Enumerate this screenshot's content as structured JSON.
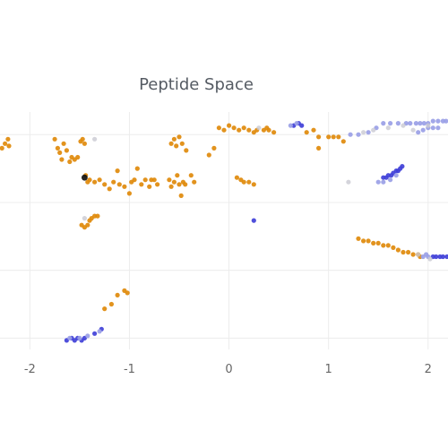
{
  "chart_data": {
    "type": "scatter",
    "title": "Peptide Space",
    "xlabel": "",
    "ylabel": "",
    "xlim": [
      -2.3,
      2.2
    ],
    "ylim": [
      -0.05,
      1.0
    ],
    "x_ticks": [
      -2,
      -1,
      0,
      1,
      2
    ],
    "y_gridlines": [
      0.0,
      0.3,
      0.6,
      0.9
    ],
    "grid": true,
    "legend": "none",
    "colors": {
      "orange": "#e08a0b",
      "blue": "#4040d8",
      "light_blue": "#9aa0e6",
      "gray": "#c9c9d2",
      "black": "#111111"
    },
    "series": [
      {
        "color": "orange",
        "points": [
          [
            -2.28,
            0.84
          ],
          [
            -2.25,
            0.86
          ],
          [
            -2.22,
            0.88
          ],
          [
            -2.21,
            0.85
          ],
          [
            -1.75,
            0.88
          ],
          [
            -1.72,
            0.84
          ],
          [
            -1.7,
            0.82
          ],
          [
            -1.68,
            0.79
          ],
          [
            -1.66,
            0.86
          ],
          [
            -1.63,
            0.83
          ],
          [
            -1.6,
            0.78
          ],
          [
            -1.58,
            0.8
          ],
          [
            -1.55,
            0.79
          ],
          [
            -1.52,
            0.8
          ],
          [
            -1.49,
            0.87
          ],
          [
            -1.47,
            0.88
          ],
          [
            -1.45,
            0.86
          ],
          [
            -1.44,
            0.72
          ],
          [
            -1.42,
            0.69
          ],
          [
            -1.4,
            0.7
          ],
          [
            -1.35,
            0.69
          ],
          [
            -1.3,
            0.7
          ],
          [
            -1.25,
            0.68
          ],
          [
            -1.2,
            0.66
          ],
          [
            -1.16,
            0.69
          ],
          [
            -1.12,
            0.74
          ],
          [
            -1.1,
            0.68
          ],
          [
            -1.05,
            0.67
          ],
          [
            -1.0,
            0.64
          ],
          [
            -0.98,
            0.69
          ],
          [
            -0.95,
            0.7
          ],
          [
            -0.92,
            0.75
          ],
          [
            -0.88,
            0.68
          ],
          [
            -0.84,
            0.7
          ],
          [
            -0.8,
            0.67
          ],
          [
            -0.78,
            0.7
          ],
          [
            -0.75,
            0.7
          ],
          [
            -0.72,
            0.68
          ],
          [
            -0.6,
            0.7
          ],
          [
            -0.58,
            0.67
          ],
          [
            -0.55,
            0.69
          ],
          [
            -0.52,
            0.72
          ],
          [
            -0.5,
            0.68
          ],
          [
            -0.48,
            0.63
          ],
          [
            -0.46,
            0.69
          ],
          [
            -0.44,
            0.68
          ],
          [
            -0.38,
            0.72
          ],
          [
            -0.35,
            0.69
          ],
          [
            -0.58,
            0.86
          ],
          [
            -0.55,
            0.88
          ],
          [
            -0.53,
            0.85
          ],
          [
            -0.5,
            0.89
          ],
          [
            -0.47,
            0.86
          ],
          [
            -0.43,
            0.83
          ],
          [
            -0.2,
            0.81
          ],
          [
            -0.15,
            0.84
          ],
          [
            -1.4,
            0.52
          ],
          [
            -1.42,
            0.5
          ],
          [
            -1.45,
            0.49
          ],
          [
            -1.48,
            0.5
          ],
          [
            -1.38,
            0.53
          ],
          [
            -1.35,
            0.54
          ],
          [
            -1.32,
            0.54
          ],
          [
            -1.25,
            0.13
          ],
          [
            -1.18,
            0.15
          ],
          [
            -1.12,
            0.19
          ],
          [
            -1.05,
            0.21
          ],
          [
            -1.02,
            0.2
          ],
          [
            -0.1,
            0.93
          ],
          [
            -0.05,
            0.92
          ],
          [
            0.0,
            0.94
          ],
          [
            0.05,
            0.93
          ],
          [
            0.1,
            0.92
          ],
          [
            0.15,
            0.93
          ],
          [
            0.2,
            0.92
          ],
          [
            0.25,
            0.91
          ],
          [
            0.28,
            0.92
          ],
          [
            0.35,
            0.92
          ],
          [
            0.38,
            0.93
          ],
          [
            0.4,
            0.92
          ],
          [
            0.45,
            0.91
          ],
          [
            0.78,
            0.91
          ],
          [
            0.85,
            0.92
          ],
          [
            0.9,
            0.89
          ],
          [
            0.9,
            0.84
          ],
          [
            1.0,
            0.89
          ],
          [
            1.05,
            0.89
          ],
          [
            1.1,
            0.89
          ],
          [
            1.15,
            0.87
          ],
          [
            0.08,
            0.71
          ],
          [
            0.12,
            0.7
          ],
          [
            0.15,
            0.69
          ],
          [
            0.2,
            0.69
          ],
          [
            0.25,
            0.68
          ],
          [
            1.3,
            0.44
          ],
          [
            1.35,
            0.43
          ],
          [
            1.4,
            0.43
          ],
          [
            1.45,
            0.42
          ],
          [
            1.5,
            0.42
          ],
          [
            1.55,
            0.41
          ],
          [
            1.6,
            0.41
          ],
          [
            1.65,
            0.4
          ],
          [
            1.7,
            0.39
          ],
          [
            1.75,
            0.38
          ],
          [
            1.8,
            0.38
          ],
          [
            1.85,
            0.37
          ],
          [
            1.9,
            0.37
          ],
          [
            1.92,
            0.36
          ]
        ]
      },
      {
        "color": "blue",
        "points": [
          [
            0.25,
            0.52
          ],
          [
            0.65,
            0.94
          ],
          [
            0.7,
            0.95
          ],
          [
            0.73,
            0.94
          ],
          [
            1.55,
            0.71
          ],
          [
            1.58,
            0.71
          ],
          [
            1.6,
            0.72
          ],
          [
            1.63,
            0.72
          ],
          [
            1.65,
            0.73
          ],
          [
            1.68,
            0.74
          ],
          [
            1.7,
            0.74
          ],
          [
            1.72,
            0.75
          ],
          [
            1.74,
            0.76
          ],
          [
            2.05,
            0.36
          ],
          [
            2.08,
            0.36
          ],
          [
            2.12,
            0.36
          ],
          [
            2.15,
            0.36
          ],
          [
            2.19,
            0.36
          ],
          [
            -1.63,
            -0.01
          ],
          [
            -1.58,
            0.0
          ],
          [
            -1.55,
            -0.01
          ],
          [
            -1.52,
            0.0
          ],
          [
            -1.48,
            -0.01
          ],
          [
            -1.45,
            0.0
          ],
          [
            -1.35,
            0.02
          ],
          [
            -1.28,
            0.04
          ]
        ]
      },
      {
        "color": "light_blue",
        "points": [
          [
            0.62,
            0.94
          ],
          [
            0.68,
            0.95
          ],
          [
            1.22,
            0.9
          ],
          [
            1.3,
            0.9
          ],
          [
            1.4,
            0.91
          ],
          [
            1.48,
            0.93
          ],
          [
            1.55,
            0.95
          ],
          [
            1.62,
            0.95
          ],
          [
            1.7,
            0.95
          ],
          [
            1.78,
            0.95
          ],
          [
            1.82,
            0.95
          ],
          [
            1.88,
            0.95
          ],
          [
            1.92,
            0.95
          ],
          [
            1.96,
            0.95
          ],
          [
            2.0,
            0.95
          ],
          [
            2.05,
            0.96
          ],
          [
            2.1,
            0.96
          ],
          [
            2.15,
            0.96
          ],
          [
            2.18,
            0.96
          ],
          [
            1.9,
            0.91
          ],
          [
            1.95,
            0.92
          ],
          [
            2.0,
            0.93
          ],
          [
            2.05,
            0.93
          ],
          [
            2.1,
            0.93
          ],
          [
            1.5,
            0.69
          ],
          [
            1.55,
            0.69
          ],
          [
            1.62,
            0.7
          ],
          [
            1.68,
            0.72
          ],
          [
            1.95,
            0.36
          ],
          [
            2.0,
            0.36
          ],
          [
            1.98,
            0.37
          ],
          [
            -1.6,
            0.0
          ],
          [
            -1.5,
            0.0
          ],
          [
            -1.42,
            0.01
          ],
          [
            -1.3,
            0.03
          ]
        ]
      },
      {
        "color": "gray",
        "points": [
          [
            -1.35,
            0.88
          ],
          [
            0.3,
            0.93
          ],
          [
            1.35,
            0.91
          ],
          [
            1.45,
            0.92
          ],
          [
            1.6,
            0.93
          ],
          [
            1.75,
            0.94
          ],
          [
            1.85,
            0.92
          ],
          [
            2.0,
            0.94
          ],
          [
            1.9,
            0.37
          ],
          [
            2.02,
            0.35
          ],
          [
            1.2,
            0.69
          ],
          [
            -1.45,
            0.53
          ]
        ]
      },
      {
        "color": "black",
        "points": [
          [
            -1.45,
            0.71
          ]
        ]
      }
    ]
  }
}
